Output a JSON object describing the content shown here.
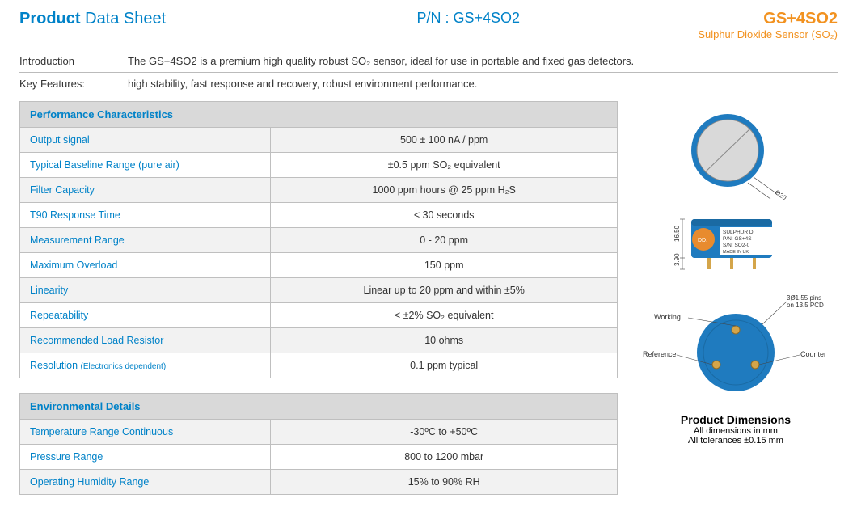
{
  "header": {
    "title_bold": "Product",
    "title_rest": " Data Sheet",
    "pn_label": "P/N : GS+4SO2",
    "model": "GS+4SO2",
    "subtitle": "Sulphur Dioxide Sensor (SO₂)"
  },
  "intro": {
    "label": "Introduction",
    "text": "The GS+4SO2 is a premium high quality robust SO₂ sensor, ideal for use in portable and fixed gas detectors."
  },
  "keyfeatures": {
    "label": "Key Features:",
    "text": "high stability, fast response and recovery, robust environment performance."
  },
  "tables": {
    "perf": {
      "title": "Performance Characteristics",
      "rows": [
        {
          "param": "Output signal",
          "sub": "",
          "val": "500 ± 100 nA / ppm"
        },
        {
          "param": "Typical Baseline Range (pure air)",
          "sub": "",
          "val": "±0.5 ppm SO₂ equivalent"
        },
        {
          "param": "Filter Capacity",
          "sub": "",
          "val": "1000 ppm hours @ 25 ppm H₂S"
        },
        {
          "param": "T90 Response Time",
          "sub": "",
          "val": "< 30 seconds"
        },
        {
          "param": "Measurement Range",
          "sub": "",
          "val": "0 - 20 ppm"
        },
        {
          "param": "Maximum Overload",
          "sub": "",
          "val": "150 ppm"
        },
        {
          "param": "Linearity",
          "sub": "",
          "val": "Linear up to 20 ppm and within ±5%"
        },
        {
          "param": "Repeatability",
          "sub": "",
          "val": "< ±2% SO₂ equivalent"
        },
        {
          "param": "Recommended Load Resistor",
          "sub": "",
          "val": "10 ohms"
        },
        {
          "param": "Resolution",
          "sub": "(Electronics dependent)",
          "val": "0.1 ppm typical"
        }
      ]
    },
    "env": {
      "title": "Environmental Details",
      "rows": [
        {
          "param": "Temperature Range Continuous",
          "sub": "",
          "val": "-30ºC to +50ºC"
        },
        {
          "param": "Pressure Range",
          "sub": "",
          "val": "800 to 1200 mbar"
        },
        {
          "param": "Operating Humidity Range",
          "sub": "",
          "val": "15% to 90% RH"
        }
      ]
    }
  },
  "diagram": {
    "top": {
      "outer_color": "#1f7bbf",
      "inner_color": "#d9d9d9",
      "dia_label": "Ø20"
    },
    "side": {
      "body_color": "#1f7bbf",
      "label_bg": "#ffffff",
      "orange_disc": "#e88b2e",
      "height_label": "16.50",
      "pin_drop_label": "3.90",
      "label_lines": [
        "SULPHUR DI",
        "P/N: GS+4S",
        "S/N:  SO2-0",
        "MADE IN UK"
      ],
      "dd_text": "DD."
    },
    "bottom": {
      "body_color": "#1f7bbf",
      "pin_color": "#d4a54a",
      "working_label": "Working",
      "reference_label": "Reference",
      "counter_label": "Counter",
      "pin_note_line1": "3Ø1.55 pins",
      "pin_note_line2": "on 13.5 PCD"
    },
    "caption": {
      "t1": "Product Dimensions",
      "t2a": "All dimensions in mm",
      "t2b": "All tolerances ±0.15 mm"
    }
  },
  "style": {
    "brand_blue": "#0082c8",
    "brand_orange": "#f29220",
    "table_header_bg": "#d9d9d9",
    "row_alt_bg": "#f2f2f2",
    "border_color": "#bfbfbf"
  }
}
